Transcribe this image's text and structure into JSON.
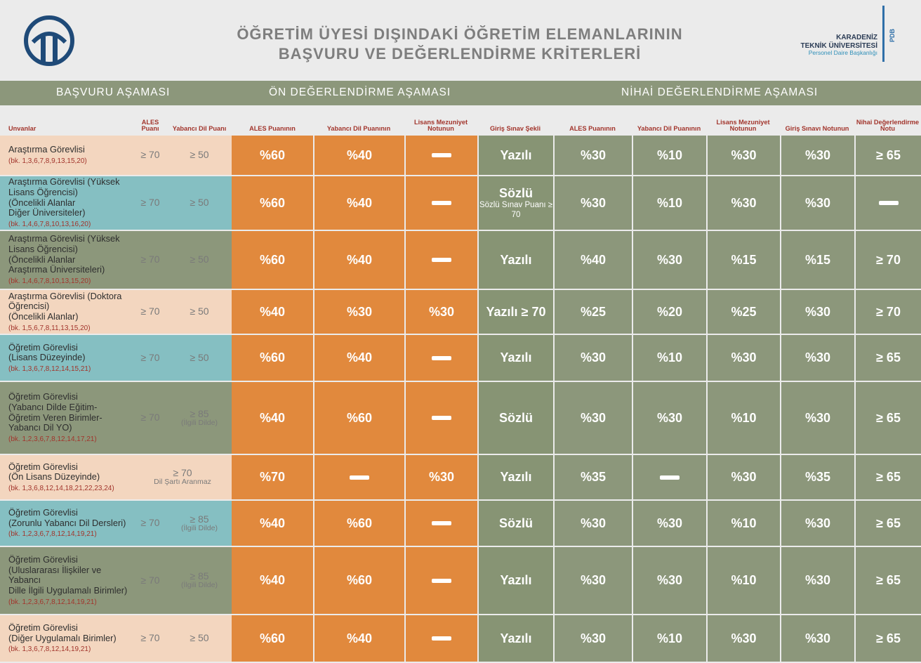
{
  "title": {
    "line1": "ÖĞRETİM ÜYESİ DIŞINDAKİ ÖĞRETİM ELEMANLARININ",
    "line2": "BAŞVURU VE DEĞERLENDİRME KRİTERLERİ"
  },
  "brand": {
    "line1": "KARADENİZ",
    "line2": "TEKNİK ÜNİVERSİTESİ",
    "line3": "Personel Daire Başkanlığı",
    "tag": "PDB",
    "logo_icon": "ktu-logo-icon",
    "logo_color": "#1f4a78"
  },
  "sections": [
    "BAŞVURU AŞAMASI",
    "ÖN DEĞERLENDİRME AŞAMASI",
    "NİHAİ DEĞERLENDİRME AŞAMASI"
  ],
  "column_headers": [
    "Unvanlar",
    "ALES Puanı",
    "Yabancı Dil Puanı",
    "ALES Puanının",
    "Yabancı Dil Puanının",
    "Lisans Mezuniyet Notunun",
    "Giriş Sınav Şekli",
    "ALES Puanının",
    "Yabancı Dil Puanının",
    "Lisans Mezuniyet Notunun",
    "Giriş Sınavı Notunun",
    "Nihai Değerlendirme Notu"
  ],
  "colors": {
    "peach": "#f3d6bf",
    "teal": "#85bfc2",
    "olive": "#8c977b",
    "orange": "#e1893d",
    "giris": "#879474",
    "note_red": "#a2352c"
  },
  "rows": [
    {
      "color": "peach",
      "title": [
        "Araştırma Görevlisi"
      ],
      "bk": "(bk. 1,3,6,7,8,9,13,15,20)",
      "ales": "≥ 70",
      "dil": "≥ 50",
      "on": [
        "%60",
        "%40",
        "—"
      ],
      "giris": "Yazılı",
      "giris_sub": "",
      "nihai": [
        "%30",
        "%10",
        "%30",
        "%30",
        "≥ 65"
      ]
    },
    {
      "color": "teal",
      "title": [
        "Araştırma Görevlisi (Yüksek Lisans Öğrencisi)",
        "(Öncelikli Alanlar",
        "Diğer Üniversiteler)"
      ],
      "bk": "(bk. 1,4,6,7,8,10,13,16,20)",
      "ales": "≥ 70",
      "dil": "≥ 50",
      "on": [
        "%60",
        "%40",
        "—"
      ],
      "giris": "Sözlü",
      "giris_sub": "Sözlü Sınav Puanı ≥ 70",
      "nihai": [
        "%30",
        "%10",
        "%30",
        "%30",
        "—"
      ]
    },
    {
      "color": "olive",
      "title": [
        "Araştırma Görevlisi (Yüksek Lisans Öğrencisi)",
        "(Öncelikli Alanlar",
        "Araştırma Üniversiteleri)"
      ],
      "bk": "(bk. 1,4,6,7,8,10,13,15,20)",
      "ales": "≥ 70",
      "dil": "≥ 50",
      "on": [
        "%60",
        "%40",
        "—"
      ],
      "giris": "Yazılı",
      "giris_sub": "",
      "nihai": [
        "%40",
        "%30",
        "%15",
        "%15",
        "≥ 70"
      ]
    },
    {
      "color": "peach",
      "title": [
        "Araştırma Görevlisi (Doktora Öğrencisi)",
        "(Öncelikli Alanlar)"
      ],
      "bk": "(bk. 1,5,6,7,8,11,13,15,20)",
      "ales": "≥ 70",
      "dil": "≥ 50",
      "on": [
        "%40",
        "%30",
        "%30"
      ],
      "giris": "Yazılı ≥ 70",
      "giris_sub": "",
      "nihai": [
        "%25",
        "%20",
        "%25",
        "%30",
        "≥ 70"
      ]
    },
    {
      "color": "teal",
      "title": [
        "Öğretim Görevlisi",
        "(Lisans Düzeyinde)"
      ],
      "bk": "(bk. 1,3,6,7,8,12,14,15,21)",
      "ales": "≥ 70",
      "dil": "≥ 50",
      "on": [
        "%60",
        "%40",
        "—"
      ],
      "giris": "Yazılı",
      "giris_sub": "",
      "nihai": [
        "%30",
        "%10",
        "%30",
        "%30",
        "≥ 65"
      ]
    },
    {
      "color": "olive",
      "title": [
        "Öğretim Görevlisi",
        "(Yabancı Dilde Eğitim-",
        "Öğretim Veren Birimler-",
        "Yabancı Dil YO)"
      ],
      "bk": "(bk. 1,2,3,6,7,8,12,14,17,21)",
      "ales": "≥ 70",
      "dil": "≥ 85",
      "dil_sub": "(İlgili Dilde)",
      "on": [
        "%40",
        "%60",
        "—"
      ],
      "giris": "Sözlü",
      "giris_sub": "",
      "nihai": [
        "%30",
        "%30",
        "%10",
        "%30",
        "≥ 65"
      ]
    },
    {
      "color": "peach",
      "title": [
        "Öğretim Görevlisi",
        "(Ön Lisans Düzeyinde)"
      ],
      "bk": "(bk. 1,3,6,8,12,14,18,21,22,23,24)",
      "ales_merged": "≥ 70",
      "ales_merged_sub": "Dil Şartı Aranmaz",
      "on": [
        "%70",
        "—",
        "%30"
      ],
      "giris": "Yazılı",
      "giris_sub": "",
      "nihai": [
        "%35",
        "—",
        "%30",
        "%35",
        "≥ 65"
      ]
    },
    {
      "color": "teal",
      "title": [
        "Öğretim Görevlisi",
        "(Zorunlu Yabancı Dil Dersleri)"
      ],
      "bk": "(bk. 1,2,3,6,7,8,12,14,19,21)",
      "ales": "≥ 70",
      "dil": "≥ 85",
      "dil_sub": "(İlgili Dilde)",
      "on": [
        "%40",
        "%60",
        "—"
      ],
      "giris": "Sözlü",
      "giris_sub": "",
      "nihai": [
        "%30",
        "%30",
        "%10",
        "%30",
        "≥ 65"
      ]
    },
    {
      "color": "olive",
      "title": [
        "Öğretim Görevlisi",
        "(Uluslararası İlişkiler ve Yabancı",
        "Dille İlgili Uygulamalı Birimler)"
      ],
      "bk": "(bk. 1,2,3,6,7,8,12,14,19,21)",
      "ales": "≥ 70",
      "dil": "≥ 85",
      "dil_sub": "(İlgili Dilde)",
      "on": [
        "%40",
        "%60",
        "—"
      ],
      "giris": "Yazılı",
      "giris_sub": "",
      "nihai": [
        "%30",
        "%30",
        "%10",
        "%30",
        "≥ 65"
      ]
    },
    {
      "color": "peach",
      "title": [
        "Öğretim Görevlisi",
        "(Diğer Uygulamalı Birimler)"
      ],
      "bk": "(bk. 1,3,6,7,8,12,14,19,21)",
      "ales": "≥ 70",
      "dil": "≥ 50",
      "on": [
        "%60",
        "%40",
        "—"
      ],
      "giris": "Yazılı",
      "giris_sub": "",
      "nihai": [
        "%30",
        "%10",
        "%30",
        "%30",
        "≥ 65"
      ]
    }
  ]
}
